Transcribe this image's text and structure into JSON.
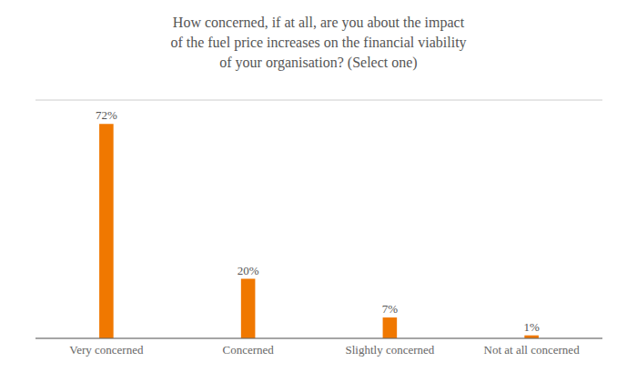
{
  "chart_data": {
    "type": "bar",
    "title": "How concerned, if at all, are you about the impact\nof the fuel price increases on the financial viability\nof your organisation? (Select one)",
    "categories": [
      "Very concerned",
      "Concerned",
      "Slightly concerned",
      "Not at all concerned"
    ],
    "values": [
      72,
      20,
      7,
      1
    ],
    "value_labels": [
      "72%",
      "20%",
      "7%",
      "1%"
    ],
    "data_labels": true,
    "color": "#F07800",
    "ylim": [
      0,
      80
    ],
    "yticks": [
      0,
      20,
      40,
      60,
      80
    ],
    "grid": true,
    "tick_labels": "x"
  }
}
